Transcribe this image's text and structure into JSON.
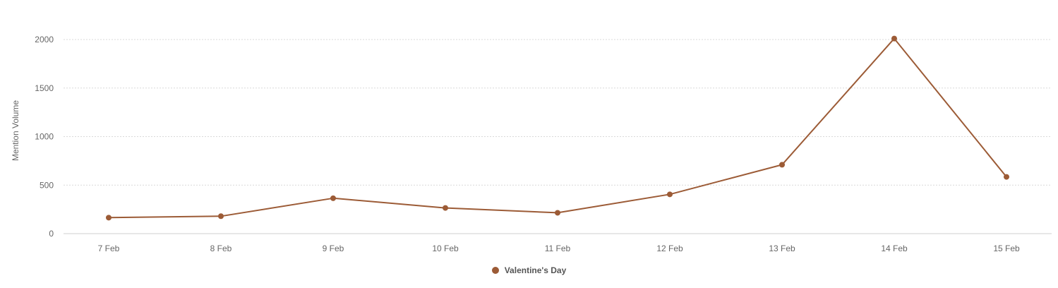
{
  "chart_data": {
    "type": "line",
    "title": "",
    "xlabel": "",
    "ylabel": "Mention Volume",
    "categories": [
      "7 Feb",
      "8 Feb",
      "9 Feb",
      "10 Feb",
      "11 Feb",
      "12 Feb",
      "13 Feb",
      "14 Feb",
      "15 Feb"
    ],
    "series": [
      {
        "name": "Valentine's Day",
        "color": "#9c5b36",
        "values": [
          165,
          180,
          365,
          265,
          215,
          405,
          710,
          2010,
          585
        ]
      }
    ],
    "ylim": [
      0,
      2000
    ],
    "yticks": [
      "0",
      "500",
      "1000",
      "1500",
      "2000"
    ],
    "grid": true,
    "legend": "bottom-center"
  }
}
